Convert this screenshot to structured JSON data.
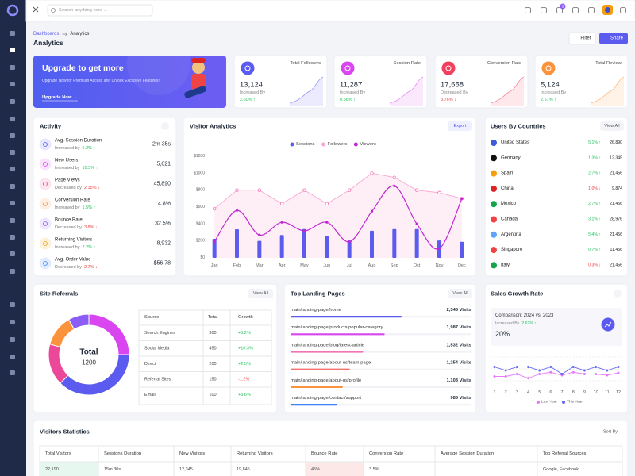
{
  "topbar": {
    "search": "Search anything here ...",
    "badge": "5"
  },
  "header": {
    "breadcrumb": [
      "Dashboards",
      "Analytics"
    ],
    "title": "Analytics",
    "filter": "Filter",
    "share": "Share"
  },
  "promo": {
    "title": "Upgrade to get more",
    "text": "Upgrade Now for Premium Access and Unlock Exclusive Features!",
    "link": "Upgrade Now →"
  },
  "stats": [
    {
      "label": "Total Followers",
      "value": "13,124",
      "note": "Increased By",
      "change": "2.60% ↑",
      "color": "#5b5bf0",
      "change_color": "#22c55e"
    },
    {
      "label": "Session Rate",
      "value": "11,287",
      "note": "Increased By",
      "change": "0.56% ↑",
      "color": "#d946ef",
      "change_color": "#22c55e"
    },
    {
      "label": "Conversion Rate",
      "value": "17,658",
      "note": "Decreased By",
      "change": "3.76% ↓",
      "color": "#f43f5e",
      "change_color": "#ef4444"
    },
    {
      "label": "Total Review",
      "value": "5,124",
      "note": "Increased By",
      "change": "2.57% ↑",
      "color": "#fb923c",
      "change_color": "#22c55e"
    }
  ],
  "activity": {
    "title": "Activity",
    "items": [
      {
        "name": "Avg. Session Duration",
        "note": "Increased by",
        "change": "5.2% ↑",
        "value": "2m 35s",
        "color": "#5b5bf0",
        "change_color": "#22c55e"
      },
      {
        "name": "New Users",
        "note": "Increased by",
        "change": "10.3% ↑",
        "value": "5,621",
        "color": "#d946ef",
        "change_color": "#22c55e"
      },
      {
        "name": "Page Views",
        "note": "Decreased by",
        "change": "2.15% ↓",
        "value": "45,890",
        "color": "#ec4899",
        "change_color": "#ef4444"
      },
      {
        "name": "Conversion Rate",
        "note": "Increased by",
        "change": "1.5% ↑",
        "value": "4.8%",
        "color": "#fb923c",
        "change_color": "#22c55e"
      },
      {
        "name": "Bounce Rate",
        "note": "Decreased by",
        "change": "3.8% ↓",
        "value": "32.5%",
        "color": "#8b5cf6",
        "change_color": "#ef4444"
      },
      {
        "name": "Returning Visitors",
        "note": "Increased by",
        "change": "7.2% ↑",
        "value": "8,932",
        "color": "#f59e0b",
        "change_color": "#22c55e"
      },
      {
        "name": "Avg. Order Value",
        "note": "Decreased by",
        "change": "2.7% ↓",
        "value": "$56.78",
        "color": "#3b82f6",
        "change_color": "#ef4444"
      }
    ]
  },
  "visitor_analytics": {
    "title": "Visitor Analytics",
    "export": "Export",
    "chart_data": {
      "type": "bar-line",
      "categories": [
        "Jan",
        "Feb",
        "Mar",
        "Apr",
        "May",
        "Jun",
        "Jul",
        "Aug",
        "Sep",
        "Oct",
        "Nov",
        "Dec"
      ],
      "series": [
        {
          "name": "Sessions",
          "color": "#5b5bf0",
          "kind": "bar",
          "values": [
            225,
            337,
            200,
            270,
            340,
            260,
            205,
            320,
            340,
            340,
            205,
            190
          ]
        },
        {
          "name": "Followers",
          "color": "#f9a8d4",
          "kind": "area",
          "values": [
            580,
            800,
            800,
            640,
            800,
            640,
            800,
            1000,
            950,
            800,
            770,
            700
          ]
        },
        {
          "name": "Viewers",
          "color": "#c026d3",
          "kind": "curve",
          "values": [
            190,
            560,
            270,
            420,
            320,
            420,
            190,
            550,
            850,
            400,
            110,
            700
          ]
        }
      ],
      "ylim": [
        0,
        1200
      ],
      "yticks": [
        {
          "value": 0,
          "label": "$0"
        },
        {
          "value": 200,
          "label": "$200"
        },
        {
          "value": 400,
          "label": "$400"
        },
        {
          "value": 600,
          "label": "$600"
        },
        {
          "value": 800,
          "label": "$800"
        },
        {
          "value": 1000,
          "label": "$1000"
        },
        {
          "value": 1200,
          "label": "$1200"
        }
      ]
    }
  },
  "countries": {
    "title": "Users By Countries",
    "view_all": "View All",
    "rows": [
      {
        "name": "United States",
        "change": "5.1% ↑",
        "value": "26,890",
        "change_color": "#22c55e"
      },
      {
        "name": "Germany",
        "change": "1.3% ↑",
        "value": "12,345",
        "change_color": "#22c55e"
      },
      {
        "name": "Spain",
        "change": "2.7% ↑",
        "value": "21,456",
        "change_color": "#22c55e"
      },
      {
        "name": "China",
        "change": "1.0% ↓",
        "value": "9,874",
        "change_color": "#ef4444"
      },
      {
        "name": "Mexico",
        "change": "2.7% ↑",
        "value": "21,456",
        "change_color": "#22c55e"
      },
      {
        "name": "Canada",
        "change": "3.1% ↑",
        "value": "28,976",
        "change_color": "#22c55e"
      },
      {
        "name": "Argentina",
        "change": "5.4% ↑",
        "value": "21,456",
        "change_color": "#22c55e"
      },
      {
        "name": "Singapore",
        "change": "0.7% ↑",
        "value": "11,456",
        "change_color": "#22c55e"
      },
      {
        "name": "Italy",
        "change": "0.3% ↓",
        "value": "21,456",
        "change_color": "#ef4444"
      }
    ]
  },
  "referrals": {
    "title": "Site Referrals",
    "view_all": "View All",
    "total_label": "Total",
    "total": "1200",
    "colors": [
      "#d946ef",
      "#5b5bf0",
      "#ec4899",
      "#fb923c",
      "#8b5cf6"
    ],
    "table": {
      "header": [
        "Source",
        "Total",
        "Growth"
      ],
      "rows": [
        [
          "Search Engines",
          300,
          "+5.2%"
        ],
        [
          "Social Media",
          450,
          "+10.3%"
        ],
        [
          "Direct",
          200,
          "+2.5%"
        ],
        [
          "Referral Sites",
          150,
          "-1.2%"
        ],
        [
          "Email",
          100,
          "+3.6%"
        ]
      ],
      "growth_colors": [
        "#22c55e",
        "#22c55e",
        "#22c55e",
        "#ef4444",
        "#22c55e"
      ]
    }
  },
  "landing": {
    "title": "Top Landing Pages",
    "view_all": "View All",
    "rows": [
      {
        "page": "main/landing-page/home",
        "visits": {
          "value": 2345,
          "label": "2,345 Visits"
        },
        "color": "#5b5bf0"
      },
      {
        "page": "main/landing-page/products/popular-category",
        "visits": {
          "value": 1987,
          "label": "1,987 Visits"
        },
        "color": "#d946ef"
      },
      {
        "page": "main/landing-page/blog/latest-article",
        "visits": {
          "value": 1532,
          "label": "1,532 Visits"
        },
        "color": "#f472b6"
      },
      {
        "page": "main/landing-page/about-us/team-page",
        "visits": {
          "value": 1254,
          "label": "1,254 Visits"
        },
        "color": "#f87171"
      },
      {
        "page": "main/landing-page/about-us/profile",
        "visits": {
          "value": 1103,
          "label": "1,103 Visits"
        },
        "color": "#fb923c"
      },
      {
        "page": "main/landing-page/contact/support",
        "visits": {
          "value": 985,
          "label": "985 Visits"
        },
        "color": "#3b82f6"
      }
    ]
  },
  "sales": {
    "title": "Sales Growth Rate",
    "comparison": "Comparison: 2024 vs. 2023",
    "note": "Increased By",
    "change": "2.62% ↑",
    "rate": "20%",
    "chart_data": {
      "type": "line",
      "x": [
        1,
        2,
        3,
        4,
        5,
        6,
        7,
        8,
        9,
        10,
        11,
        12
      ],
      "xlim": [
        1,
        12
      ],
      "ylim": [
        0,
        60
      ],
      "series": [
        {
          "name": "Last Year",
          "color": "#e879f9",
          "values": [
            18,
            18,
            22,
            15,
            22,
            25,
            20,
            25,
            22,
            22,
            20,
            24
          ]
        },
        {
          "name": "This Year",
          "color": "#6366f1",
          "values": [
            34,
            28,
            34,
            34,
            28,
            34,
            22,
            34,
            28,
            34,
            28,
            34
          ]
        }
      ]
    }
  },
  "visitors": {
    "title": "Visitors Statistics",
    "sort": "Sort By",
    "header": [
      "Total Visitors",
      "Sessions Duration",
      "New Visitors",
      "Returning Visitors",
      "Bounce Rate",
      "Conversion Rate",
      "Average Session Duration",
      "Top Referral Sources"
    ],
    "rows": [
      [
        "22,190",
        "15m 30s",
        "12,345",
        "19,845",
        "45%",
        "3.5%",
        null,
        "Google, Facebook"
      ]
    ]
  }
}
